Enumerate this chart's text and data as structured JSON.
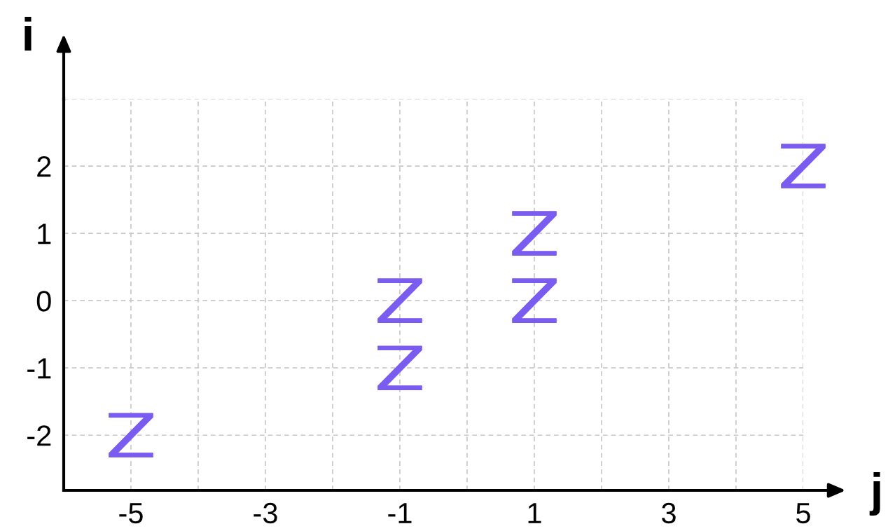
{
  "chart_data": {
    "type": "scatter",
    "xlabel": "j",
    "ylabel": "i",
    "x": [
      -5,
      -1,
      -1,
      1,
      1,
      5
    ],
    "series": [
      {
        "color": "#7b5cf0",
        "values": [
          -2,
          0,
          -1,
          1,
          0,
          2
        ]
      }
    ],
    "xlim": [
      -6,
      5
    ],
    "ylim": [
      -2.82,
      3
    ],
    "xticks": [
      -5,
      {
        "value": -4,
        "label": null
      },
      -3,
      {
        "value": -2,
        "label": null
      },
      -1,
      {
        "value": 0,
        "label": null
      },
      1,
      {
        "value": 2,
        "label": null
      },
      3,
      {
        "value": 4,
        "label": null
      },
      5
    ],
    "yticks": [
      -2,
      -1,
      0,
      1,
      2,
      {
        "value": 3,
        "label": null
      }
    ],
    "grid": true
  }
}
